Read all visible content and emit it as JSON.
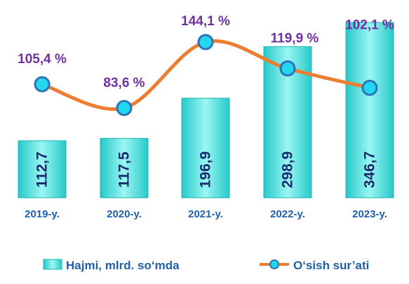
{
  "chart_data": {
    "type": "bar",
    "categories": [
      "2019-y.",
      "2020-y.",
      "2021-y.",
      "2022-y.",
      "2023-y."
    ],
    "series": [
      {
        "name": "Hajmi, mlrd. so‘mda",
        "type": "bar",
        "values": [
          112.7,
          117.5,
          196.9,
          298.9,
          346.7
        ],
        "labels": [
          "112,7",
          "117,5",
          "196,9",
          "298,9",
          "346,7"
        ],
        "color": "#5ee6e6"
      },
      {
        "name": "O‘sish sur’ati",
        "type": "line",
        "values": [
          105.4,
          83.6,
          144.1,
          119.9,
          102.1
        ],
        "labels": [
          "105,4 %",
          "83,6 %",
          "144,1 %",
          "119,9 %",
          "102,1 %"
        ],
        "color": "#ed7d31",
        "marker_color": "#22d8f0"
      }
    ],
    "title": "",
    "xlabel": "",
    "ylabel": "",
    "grid": false,
    "legend_position": "bottom"
  }
}
